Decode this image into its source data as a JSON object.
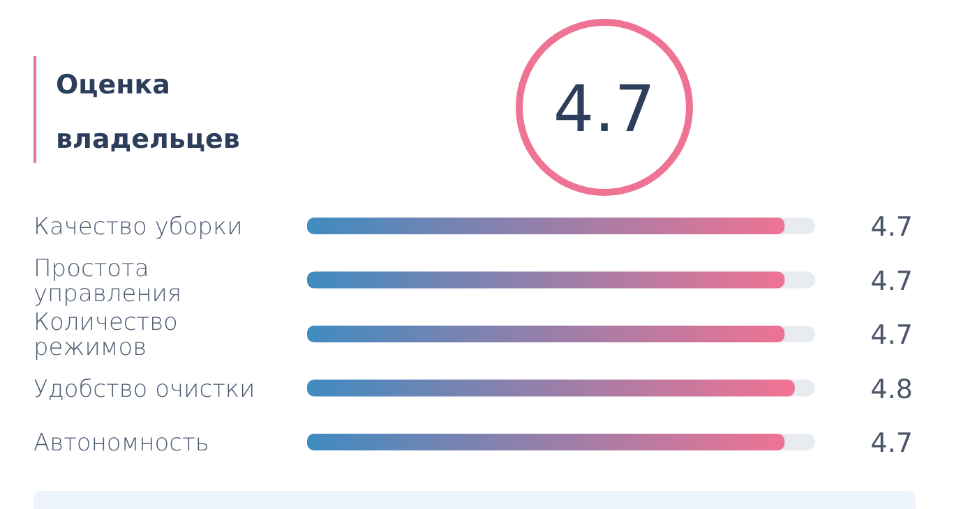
{
  "chart_data": {
    "type": "bar",
    "orientation": "horizontal",
    "title": "Оценка владельцев",
    "annotations": [
      "4.7"
    ],
    "categories": [
      "Качество уборки",
      "Простота управления",
      "Количество режимов",
      "Удобство очистки",
      "Автономность"
    ],
    "series": [
      {
        "color": "#ee7394",
        "values": [
          4.7,
          4.7,
          4.7,
          4.8,
          4.7
        ]
      }
    ],
    "xlim": [
      0,
      5
    ],
    "tick_labels": "y",
    "data_labels": true
  }
}
